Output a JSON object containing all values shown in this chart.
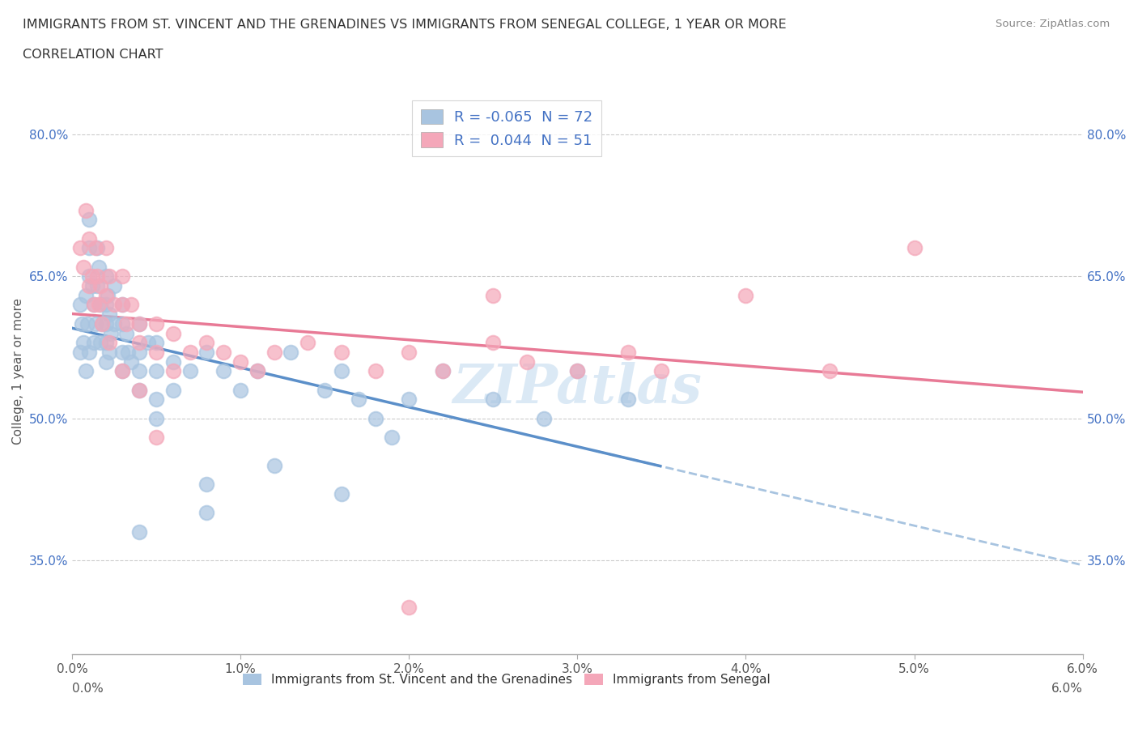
{
  "title_line1": "IMMIGRANTS FROM ST. VINCENT AND THE GRENADINES VS IMMIGRANTS FROM SENEGAL COLLEGE, 1 YEAR OR MORE",
  "title_line2": "CORRELATION CHART",
  "source_text": "Source: ZipAtlas.com",
  "ylabel": "College, 1 year or more",
  "xlim": [
    0.0,
    0.06
  ],
  "ylim": [
    0.25,
    0.85
  ],
  "xtick_labels": [
    "0.0%",
    "1.0%",
    "2.0%",
    "3.0%",
    "4.0%",
    "5.0%",
    "6.0%"
  ],
  "xtick_vals": [
    0.0,
    0.01,
    0.02,
    0.03,
    0.04,
    0.05,
    0.06
  ],
  "ytick_vals": [
    0.35,
    0.5,
    0.65,
    0.8
  ],
  "ytick_labels": [
    "35.0%",
    "50.0%",
    "65.0%",
    "80.0%"
  ],
  "color_blue": "#a8c4e0",
  "color_pink": "#f4a7b9",
  "line_blue_solid": "#5b8fc9",
  "line_pink_solid": "#e87a96",
  "R_blue": -0.065,
  "N_blue": 72,
  "R_pink": 0.044,
  "N_pink": 51,
  "legend_label_blue": "Immigrants from St. Vincent and the Grenadines",
  "legend_label_pink": "Immigrants from Senegal",
  "watermark": "ZIPatlas",
  "blue_x": [
    0.0005,
    0.0005,
    0.0006,
    0.0007,
    0.0008,
    0.0008,
    0.0009,
    0.001,
    0.001,
    0.001,
    0.001,
    0.0012,
    0.0013,
    0.0013,
    0.0014,
    0.0015,
    0.0015,
    0.0016,
    0.0017,
    0.0017,
    0.0018,
    0.002,
    0.002,
    0.002,
    0.002,
    0.0021,
    0.0022,
    0.0022,
    0.0023,
    0.0025,
    0.0025,
    0.003,
    0.003,
    0.003,
    0.003,
    0.0032,
    0.0033,
    0.0035,
    0.004,
    0.004,
    0.004,
    0.004,
    0.0045,
    0.005,
    0.005,
    0.005,
    0.005,
    0.006,
    0.006,
    0.007,
    0.008,
    0.008,
    0.009,
    0.01,
    0.011,
    0.012,
    0.013,
    0.015,
    0.016,
    0.017,
    0.018,
    0.019,
    0.02,
    0.022,
    0.025,
    0.028,
    0.03,
    0.033,
    0.016,
    0.008,
    0.004,
    0.002
  ],
  "blue_y": [
    0.57,
    0.62,
    0.6,
    0.58,
    0.55,
    0.63,
    0.6,
    0.57,
    0.65,
    0.68,
    0.71,
    0.64,
    0.62,
    0.58,
    0.6,
    0.64,
    0.68,
    0.66,
    0.62,
    0.58,
    0.6,
    0.65,
    0.62,
    0.58,
    0.56,
    0.63,
    0.61,
    0.57,
    0.59,
    0.64,
    0.6,
    0.6,
    0.57,
    0.55,
    0.62,
    0.59,
    0.57,
    0.56,
    0.6,
    0.57,
    0.55,
    0.53,
    0.58,
    0.58,
    0.55,
    0.52,
    0.5,
    0.56,
    0.53,
    0.55,
    0.57,
    0.43,
    0.55,
    0.53,
    0.55,
    0.45,
    0.57,
    0.53,
    0.55,
    0.52,
    0.5,
    0.48,
    0.52,
    0.55,
    0.52,
    0.5,
    0.55,
    0.52,
    0.42,
    0.4,
    0.38,
    0.6
  ],
  "pink_x": [
    0.0005,
    0.0007,
    0.0008,
    0.001,
    0.001,
    0.0012,
    0.0013,
    0.0014,
    0.0015,
    0.0016,
    0.0017,
    0.0018,
    0.002,
    0.002,
    0.0022,
    0.0025,
    0.003,
    0.003,
    0.0032,
    0.0035,
    0.004,
    0.004,
    0.005,
    0.005,
    0.006,
    0.007,
    0.008,
    0.009,
    0.01,
    0.011,
    0.012,
    0.014,
    0.016,
    0.018,
    0.02,
    0.022,
    0.025,
    0.025,
    0.027,
    0.03,
    0.033,
    0.035,
    0.04,
    0.045,
    0.05,
    0.0022,
    0.003,
    0.004,
    0.005,
    0.006,
    0.02
  ],
  "pink_y": [
    0.68,
    0.66,
    0.72,
    0.69,
    0.64,
    0.65,
    0.62,
    0.68,
    0.65,
    0.62,
    0.64,
    0.6,
    0.63,
    0.68,
    0.65,
    0.62,
    0.65,
    0.62,
    0.6,
    0.62,
    0.6,
    0.58,
    0.6,
    0.57,
    0.59,
    0.57,
    0.58,
    0.57,
    0.56,
    0.55,
    0.57,
    0.58,
    0.57,
    0.55,
    0.57,
    0.55,
    0.63,
    0.58,
    0.56,
    0.55,
    0.57,
    0.55,
    0.63,
    0.55,
    0.68,
    0.58,
    0.55,
    0.53,
    0.48,
    0.55,
    0.3
  ]
}
